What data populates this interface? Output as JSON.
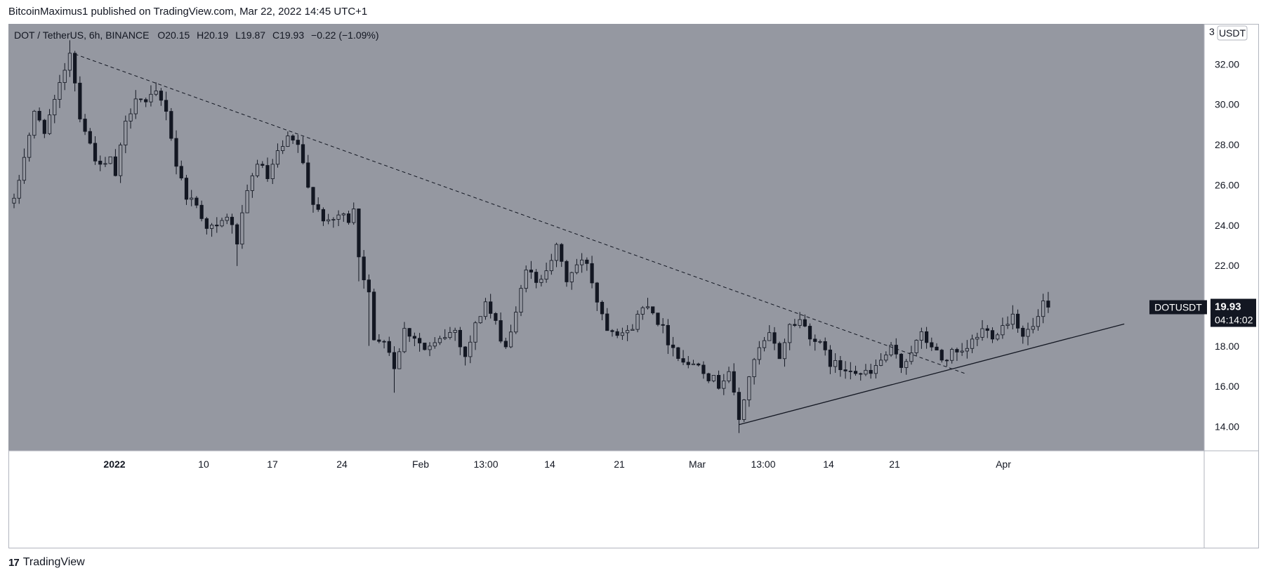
{
  "publisher_line": "BitcoinMaximus1 published on TradingView.com, Mar 22, 2022 14:45 UTC+1",
  "footer": {
    "brand": "TradingView",
    "logo_glyph": "17"
  },
  "header": {
    "symbol": "DOT / TetherUS, 6h, BINANCE",
    "open_label": "O",
    "open": "20.15",
    "high_label": "H",
    "high": "20.19",
    "low_label": "L",
    "low": "19.87",
    "close_label": "C",
    "close": "19.93",
    "change": "−0.22 (−1.09%)"
  },
  "price_badge": {
    "symbol": "DOTUSDT",
    "price": "19.93",
    "countdown": "04:14:02"
  },
  "currency_label": "USDT",
  "colors": {
    "background": "#9598a1",
    "candle": "#131722",
    "badge": "#131722",
    "badge_text": "#ffffff"
  },
  "chart_data": {
    "type": "candlestick",
    "timeframe": "6h",
    "x_ticks": [
      "2022",
      "10",
      "17",
      "24",
      "Feb",
      "13:00",
      "14",
      "21",
      "Mar",
      "13:00",
      "14",
      "21",
      "Apr"
    ],
    "y_ticks": [
      "14.00",
      "16.00",
      "18.00",
      "20.00",
      "22.00",
      "24.00",
      "26.00",
      "28.00",
      "30.00",
      "32.00"
    ],
    "y_partial_top": "3",
    "ylim": [
      12.8,
      34.0
    ],
    "current_price": 19.93,
    "price_path": [
      [
        -0.5,
        24.5
      ],
      [
        2,
        27.5
      ],
      [
        4,
        29.5
      ],
      [
        6,
        28.8
      ],
      [
        8,
        30.0
      ],
      [
        10,
        31.8
      ],
      [
        11,
        32.7
      ],
      [
        13,
        29.5
      ],
      [
        15,
        28.0
      ],
      [
        17,
        26.8
      ],
      [
        19,
        27.2
      ],
      [
        20,
        26.5
      ],
      [
        22,
        29.0
      ],
      [
        24,
        30.5
      ],
      [
        26,
        30.0
      ],
      [
        28,
        30.5
      ],
      [
        30,
        29.8
      ],
      [
        32,
        27.0
      ],
      [
        34,
        25.5
      ],
      [
        36,
        25.0
      ],
      [
        38,
        24.0
      ],
      [
        40,
        23.8
      ],
      [
        42,
        24.5
      ],
      [
        44,
        23.2
      ],
      [
        46,
        25.5
      ],
      [
        48,
        27.2
      ],
      [
        50,
        26.3
      ],
      [
        52,
        27.5
      ],
      [
        54,
        28.2
      ],
      [
        56,
        28.0
      ],
      [
        58,
        25.8
      ],
      [
        60,
        24.8
      ],
      [
        62,
        24.0
      ],
      [
        64,
        24.5
      ],
      [
        66,
        24.3
      ],
      [
        67,
        25.0
      ],
      [
        68,
        22.5
      ],
      [
        70,
        20.5
      ],
      [
        71,
        18.2
      ],
      [
        73,
        18.5
      ],
      [
        75,
        17.0
      ],
      [
        77,
        18.8
      ],
      [
        79,
        18.5
      ],
      [
        81,
        17.8
      ],
      [
        83,
        18.0
      ],
      [
        85,
        18.5
      ],
      [
        87,
        18.8
      ],
      [
        89,
        17.5
      ],
      [
        91,
        19.0
      ],
      [
        93,
        20.2
      ],
      [
        95,
        19.0
      ],
      [
        97,
        18.0
      ],
      [
        99,
        19.5
      ],
      [
        101,
        22.0
      ],
      [
        103,
        21.0
      ],
      [
        105,
        22.0
      ],
      [
        107,
        22.8
      ],
      [
        109,
        21.3
      ],
      [
        111,
        22.0
      ],
      [
        113,
        22.2
      ],
      [
        115,
        20.3
      ],
      [
        117,
        19.0
      ],
      [
        119,
        18.8
      ],
      [
        121,
        18.6
      ],
      [
        123,
        19.5
      ],
      [
        125,
        20.2
      ],
      [
        127,
        19.3
      ],
      [
        129,
        18.3
      ],
      [
        131,
        17.6
      ],
      [
        133,
        17.0
      ],
      [
        135,
        17.3
      ],
      [
        137,
        16.5
      ],
      [
        139,
        16.1
      ],
      [
        141,
        16.8
      ],
      [
        142,
        15.5
      ],
      [
        143,
        14.3
      ],
      [
        145,
        16.5
      ],
      [
        147,
        17.8
      ],
      [
        149,
        18.5
      ],
      [
        151,
        17.5
      ],
      [
        153,
        19.0
      ],
      [
        155,
        19.3
      ],
      [
        157,
        18.6
      ],
      [
        159,
        18.0
      ],
      [
        161,
        17.2
      ],
      [
        163,
        16.9
      ],
      [
        165,
        17.0
      ],
      [
        167,
        16.6
      ],
      [
        169,
        16.6
      ],
      [
        171,
        17.3
      ],
      [
        173,
        17.8
      ],
      [
        175,
        17.0
      ],
      [
        177,
        17.8
      ],
      [
        179,
        18.5
      ],
      [
        181,
        18.0
      ],
      [
        183,
        17.3
      ],
      [
        185,
        17.6
      ],
      [
        187,
        17.5
      ],
      [
        189,
        18.2
      ],
      [
        191,
        18.8
      ],
      [
        193,
        18.6
      ],
      [
        195,
        19.0
      ],
      [
        197,
        19.6
      ],
      [
        199,
        18.6
      ],
      [
        201,
        18.9
      ],
      [
        202,
        19.4
      ],
      [
        203,
        20.1
      ],
      [
        204,
        19.93
      ]
    ],
    "overlays": [
      {
        "name": "descending-trendline",
        "style": "dashed",
        "from": [
          12,
          32.5
        ],
        "to": [
          188,
          16.6
        ]
      },
      {
        "name": "ascending-trendline",
        "style": "solid",
        "from": [
          143,
          14.1
        ],
        "to": [
          219,
          19.1
        ]
      }
    ],
    "grid": false,
    "legend": "none"
  }
}
